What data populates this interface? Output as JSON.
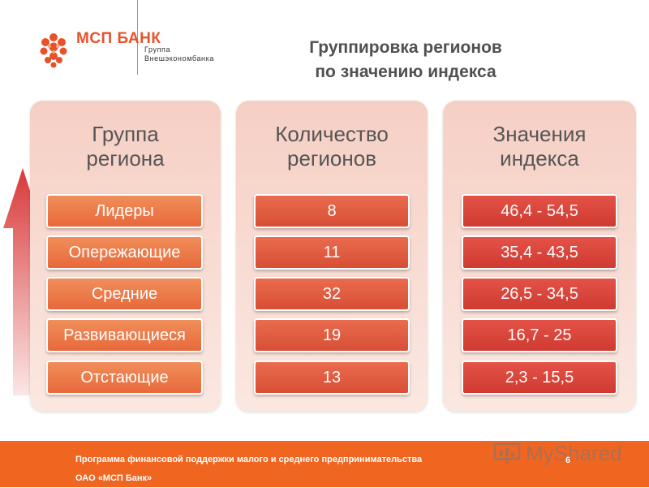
{
  "header": {
    "logo_name": "МСП БАНК",
    "logo_sub_line1": "Группа",
    "logo_sub_line2": "Внешэкономбанка",
    "title_line1": "Группировка регионов",
    "title_line2": "по значению индекса"
  },
  "columns": [
    {
      "head_line1": "Группа",
      "head_line2": "региона",
      "items": [
        "Лидеры",
        "Опережающие",
        "Средние",
        "Развивающиеся",
        "Отстающие"
      ]
    },
    {
      "head_line1": "Количество",
      "head_line2": "регионов",
      "items": [
        "8",
        "11",
        "32",
        "19",
        "13"
      ]
    },
    {
      "head_line1": "Значения",
      "head_line2": "индекса",
      "items": [
        "46,4 - 54,5",
        "35,4 - 43,5",
        "26,5 - 34,5",
        "16,7 - 25",
        "2,3 - 15,5"
      ]
    }
  ],
  "footer": {
    "line1": "Программа финансовой поддержки малого и среднего предпринимательства",
    "line2": "ОАО «МСП Банк»",
    "page_number": "6",
    "watermark": "MyShared"
  },
  "colors": {
    "brand": "#e8522a",
    "footer_bg": "#f06520",
    "panel_bg": "#f6cfc4",
    "chip_orange": "#e8693b",
    "chip_red": "#cf3a31"
  }
}
